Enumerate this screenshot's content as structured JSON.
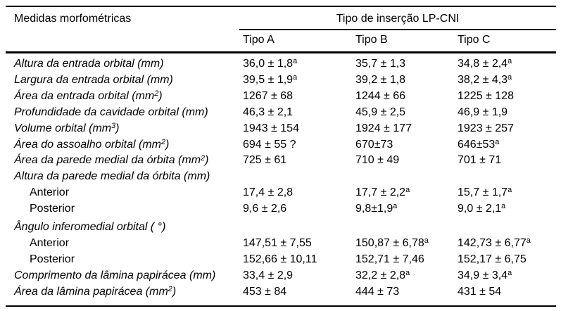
{
  "table": {
    "col1_header": "Medidas morfométricas",
    "group_header": "Tipo de inserção LP-CNI",
    "columns": [
      "Tipo A",
      "Tipo B",
      "Tipo C"
    ],
    "rows": [
      {
        "label": "Altura da entrada orbital (mm)",
        "italic": true,
        "indent": false,
        "group": false,
        "values": [
          "36,0 ± 1,8^{a}",
          "35,7 ± 1,3",
          "34,8 ± 2,4^{a}"
        ]
      },
      {
        "label": "Largura da entrada orbital (mm)",
        "italic": true,
        "indent": false,
        "group": false,
        "values": [
          "39,5 ± 1,9^{a}",
          "39,2 ± 1,8",
          "38,2 ± 4,3^{a}"
        ]
      },
      {
        "label": "Área da entrada orbital (mm^{2})",
        "italic": true,
        "indent": false,
        "group": false,
        "values": [
          "1267 ± 68",
          "1244 ± 66",
          "1225 ± 128"
        ]
      },
      {
        "label": "Profundidade da cavidade orbital (mm)",
        "italic": true,
        "indent": false,
        "group": false,
        "values": [
          "46,3 ± 2,1",
          "45,9 ± 2,5",
          "46,9 ± 1,9"
        ]
      },
      {
        "label": "Volume orbital (mm^{3})",
        "italic": true,
        "indent": false,
        "group": false,
        "values": [
          "1943 ± 154",
          "1924 ± 177",
          "1923 ± 257"
        ]
      },
      {
        "label": "Área do assoalho orbital (mm^{2})",
        "italic": true,
        "indent": false,
        "group": false,
        "values": [
          "694 ± 55 ?",
          "670±73",
          "646±53^{a}"
        ]
      },
      {
        "label": "Área da parede medial da órbita (mm^{2})",
        "italic": true,
        "indent": false,
        "group": false,
        "values": [
          "725 ± 61",
          "710 ± 49",
          "701 ± 71"
        ]
      },
      {
        "label": "Altura da parede medial da órbita (mm)",
        "italic": true,
        "indent": false,
        "group": true,
        "values": [
          "",
          "",
          ""
        ]
      },
      {
        "label": "Anterior",
        "italic": false,
        "indent": true,
        "group": false,
        "values": [
          "17,4 ± 2,8",
          "17,7 ± 2,2^{a}",
          "15,7 ± 1,7^{a}"
        ]
      },
      {
        "label": "Posterior",
        "italic": false,
        "indent": true,
        "group": false,
        "values": [
          "9,6 ± 2,6",
          "9,8±1,9^{a}",
          "9,0 ± 2,1^{a}"
        ]
      },
      {
        "label": "Ângulo inferomedial orbital ( °)",
        "italic": true,
        "indent": false,
        "group": true,
        "values": [
          "",
          "",
          ""
        ]
      },
      {
        "label": "Anterior",
        "italic": false,
        "indent": true,
        "group": false,
        "values": [
          "147,51 ± 7,55",
          "150,87 ± 6,78^{a}",
          "142,73 ± 6,77^{a}"
        ]
      },
      {
        "label": "Posterior",
        "italic": false,
        "indent": true,
        "group": false,
        "values": [
          "152,66 ± 10,11",
          "152,71 ± 7,46",
          "152,17 ± 6,75"
        ]
      },
      {
        "label": "Comprimento da lâmina papirácea (mm)",
        "italic": true,
        "indent": false,
        "group": false,
        "values": [
          "33,4 ± 2,9",
          "32,2 ± 2,8^{a}",
          "34,9 ± 3,4^{a}"
        ]
      },
      {
        "label": "Área da lâmina papirácea (mm^{2})",
        "italic": true,
        "indent": false,
        "group": false,
        "values": [
          "453 ± 84",
          "444 ± 73",
          "431 ± 54"
        ]
      }
    ]
  }
}
